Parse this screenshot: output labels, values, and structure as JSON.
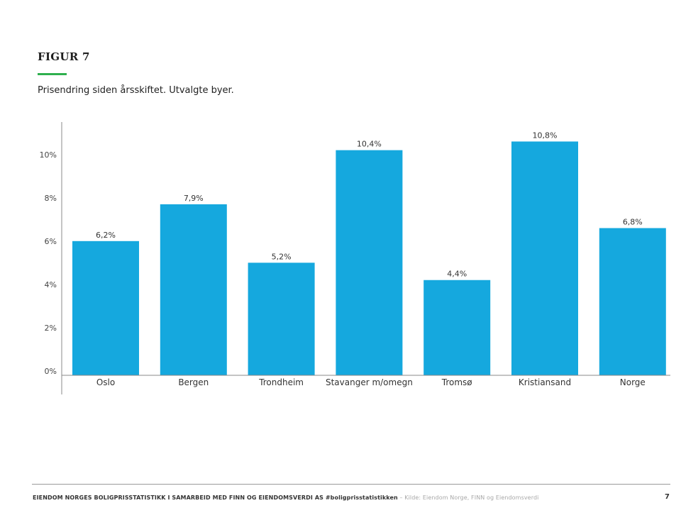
{
  "figure": {
    "label": "FIGUR 7",
    "subtitle": "Prisendring siden årsskiftet. Utvalgte byer."
  },
  "chart_data": {
    "type": "bar",
    "title": "",
    "xlabel": "",
    "ylabel": "",
    "categories": [
      "Oslo",
      "Bergen",
      "Trondheim",
      "Stavanger m/omegn",
      "Tromsø",
      "Kristiansand",
      "Norge"
    ],
    "values": [
      6.2,
      7.9,
      5.2,
      10.4,
      4.4,
      10.8,
      6.8
    ],
    "data_labels": [
      "6,2%",
      "7,9%",
      "5,2%",
      "10,4%",
      "4,4%",
      "10,8%",
      "6,8%"
    ],
    "yticks": [
      0,
      2,
      4,
      6,
      8,
      10
    ],
    "ytick_labels": [
      "0%",
      "2%",
      "4%",
      "6%",
      "8%",
      "10%"
    ],
    "ylim": [
      0,
      11.7
    ],
    "grid": false,
    "legend": "none",
    "bar_color": "#15a8de"
  },
  "footer": {
    "main": "EIENDOM NORGES BOLIGPRISSTATISTIKK I SAMARBEID MED FINN OG EIENDOMSVERDI AS #boligprisstatistikken",
    "source": "– Kilde: Eiendom Norge, FINN og Eiendomsverdi",
    "page": "7"
  }
}
